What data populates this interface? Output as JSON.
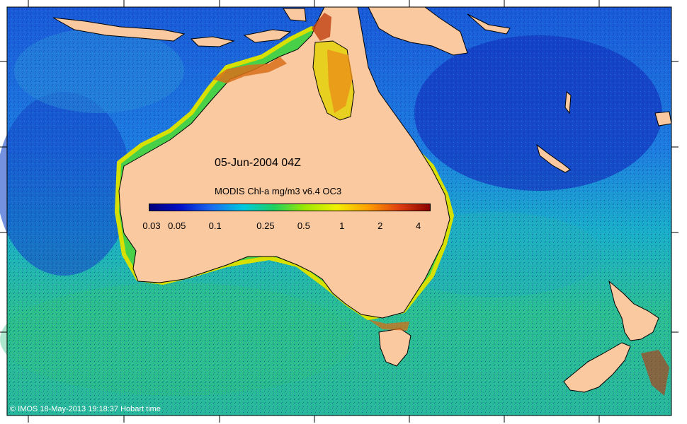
{
  "map": {
    "date_label": "05-Jun-2004 04Z",
    "colorbar_title": "MODIS Chl-a mg/m3 v6.4 OC3",
    "colorbar_ticks": [
      "0.03",
      "0.05",
      "0.1",
      "0.25",
      "0.5",
      "1",
      "2",
      "4"
    ],
    "colorbar_scale": "log",
    "colorbar_range": [
      0.03,
      5
    ],
    "colorbar_colors": [
      "#00007a",
      "#0010c8",
      "#1a6cf0",
      "#00c8e0",
      "#1ed060",
      "#9ee800",
      "#f0f000",
      "#ffa000",
      "#e04010",
      "#8a0000"
    ],
    "credit": "© IMOS 18-May-2013 19:18:37 Hobart time",
    "colors": {
      "land": "#fac9a0",
      "ocean_deep": "#1a58d8",
      "ocean_mid": "#19b8c8",
      "ocean_green": "#38c878",
      "coastal_bloom": "#e8d000",
      "frame": "#000000"
    }
  }
}
